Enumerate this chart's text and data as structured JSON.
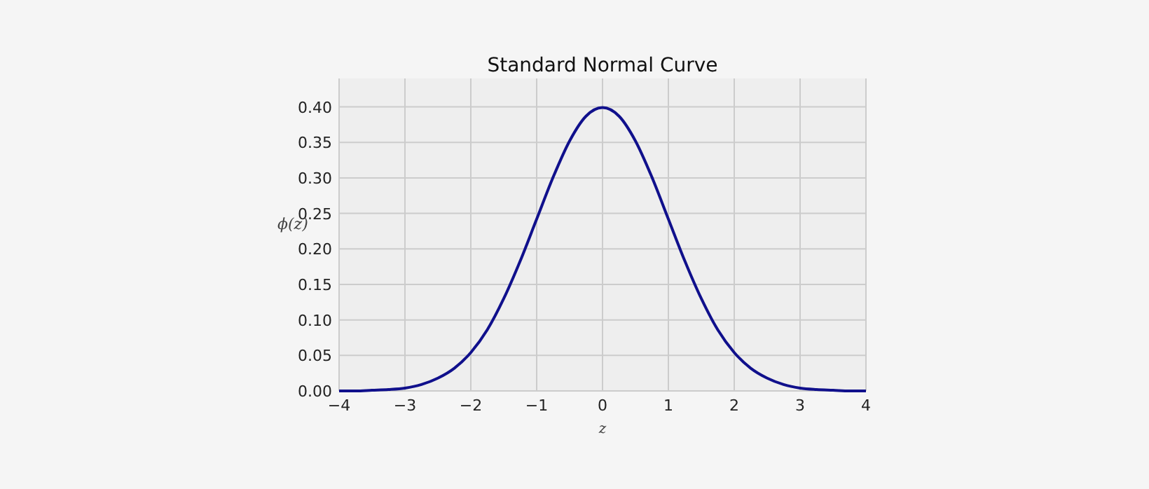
{
  "chart_data": {
    "type": "line",
    "title": "Standard Normal Curve",
    "xlabel": "z",
    "ylabel": "ϕ(z)",
    "x": [
      -4,
      -3.75,
      -3.5,
      -3.25,
      -3,
      -2.75,
      -2.5,
      -2.25,
      -2,
      -1.75,
      -1.5,
      -1.25,
      -1,
      -0.75,
      -0.5,
      -0.25,
      0,
      0.25,
      0.5,
      0.75,
      1,
      1.25,
      1.5,
      1.75,
      2,
      2.25,
      2.5,
      2.75,
      3,
      3.25,
      3.5,
      3.75,
      4
    ],
    "series": [
      {
        "color": "#10108c",
        "values": [
          0.0,
          0.0,
          0.001,
          0.002,
          0.004,
          0.009,
          0.018,
          0.032,
          0.054,
          0.086,
          0.13,
          0.183,
          0.242,
          0.301,
          0.352,
          0.387,
          0.399,
          0.387,
          0.352,
          0.301,
          0.242,
          0.183,
          0.13,
          0.086,
          0.054,
          0.032,
          0.018,
          0.009,
          0.004,
          0.002,
          0.001,
          0.0,
          0.0
        ]
      }
    ],
    "xlim": [
      -4,
      4
    ],
    "xticks": [
      {
        "value": -4,
        "label": "−4"
      },
      {
        "value": -3,
        "label": "−3"
      },
      {
        "value": -2,
        "label": "−2"
      },
      {
        "value": -1,
        "label": "−1"
      },
      0,
      1,
      2,
      3,
      4
    ],
    "ylim": [
      0,
      0.44
    ],
    "yticks": [
      {
        "value": 0,
        "label": "0.00"
      },
      {
        "value": 0.05,
        "label": "0.05"
      },
      {
        "value": 0.1,
        "label": "0.10"
      },
      {
        "value": 0.15,
        "label": "0.15"
      },
      {
        "value": 0.2,
        "label": "0.20"
      },
      {
        "value": 0.25,
        "label": "0.25"
      },
      {
        "value": 0.3,
        "label": "0.30"
      },
      {
        "value": 0.35,
        "label": "0.35"
      },
      {
        "value": 0.4,
        "label": "0.40"
      }
    ],
    "grid": true,
    "marker": "none",
    "line_style": "solid"
  }
}
